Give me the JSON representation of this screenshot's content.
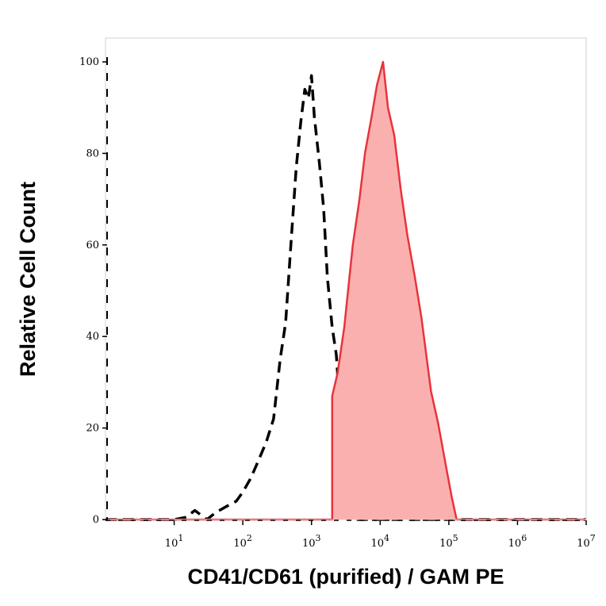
{
  "chart_data": {
    "type": "area",
    "xlabel": "CD41/CD61 (purified) / GAM PE",
    "ylabel": "Relative Cell Count",
    "x_scale": "log",
    "xlim": [
      1,
      10000000
    ],
    "ylim": [
      0,
      100
    ],
    "x_ticks": [
      {
        "value": 10,
        "base": "10",
        "exp": "1"
      },
      {
        "value": 100,
        "base": "10",
        "exp": "2"
      },
      {
        "value": 1000,
        "base": "10",
        "exp": "3"
      },
      {
        "value": 10000,
        "base": "10",
        "exp": "4"
      },
      {
        "value": 100000,
        "base": "10",
        "exp": "5"
      },
      {
        "value": 1000000,
        "base": "10",
        "exp": "6"
      },
      {
        "value": 10000000,
        "base": "10",
        "exp": "7"
      }
    ],
    "y_ticks": [
      {
        "value": 0,
        "label": "0"
      },
      {
        "value": 20,
        "label": "20"
      },
      {
        "value": 40,
        "label": "40"
      },
      {
        "value": 60,
        "label": "60"
      },
      {
        "value": 80,
        "label": "80"
      },
      {
        "value": 100,
        "label": "100"
      }
    ],
    "grid": false,
    "series": [
      {
        "style": "dashed",
        "color": "#000000",
        "filled": false,
        "points": [
          [
            1,
            0
          ],
          [
            10,
            0
          ],
          [
            15,
            0.5
          ],
          [
            20,
            2
          ],
          [
            30,
            0
          ],
          [
            40,
            1.5
          ],
          [
            60,
            3
          ],
          [
            80,
            4
          ],
          [
            100,
            6
          ],
          [
            130,
            9
          ],
          [
            170,
            13
          ],
          [
            220,
            17
          ],
          [
            280,
            22
          ],
          [
            350,
            35
          ],
          [
            420,
            43
          ],
          [
            500,
            60
          ],
          [
            600,
            77
          ],
          [
            700,
            87
          ],
          [
            800,
            94
          ],
          [
            900,
            92
          ],
          [
            1000,
            97
          ],
          [
            1100,
            88
          ],
          [
            1300,
            78
          ],
          [
            1500,
            68
          ],
          [
            1700,
            53
          ],
          [
            2000,
            42
          ],
          [
            2300,
            36
          ],
          [
            2700,
            20
          ],
          [
            3200,
            6
          ],
          [
            4000,
            0
          ],
          [
            10000000,
            0
          ]
        ]
      },
      {
        "style": "solid",
        "color": "#e8333a",
        "fill": "#fbb0b0",
        "filled": true,
        "points": [
          [
            1,
            0
          ],
          [
            2000,
            0
          ],
          [
            2000,
            27
          ],
          [
            2400,
            32
          ],
          [
            3000,
            42
          ],
          [
            4000,
            60
          ],
          [
            5000,
            70
          ],
          [
            6000,
            80
          ],
          [
            7500,
            88
          ],
          [
            9000,
            95
          ],
          [
            11000,
            100
          ],
          [
            13000,
            90
          ],
          [
            16000,
            84
          ],
          [
            20000,
            72
          ],
          [
            25000,
            62
          ],
          [
            32000,
            53
          ],
          [
            40000,
            44
          ],
          [
            55000,
            28
          ],
          [
            70000,
            21
          ],
          [
            90000,
            12
          ],
          [
            110000,
            5
          ],
          [
            130000,
            0
          ],
          [
            10000000,
            0
          ]
        ]
      }
    ]
  }
}
